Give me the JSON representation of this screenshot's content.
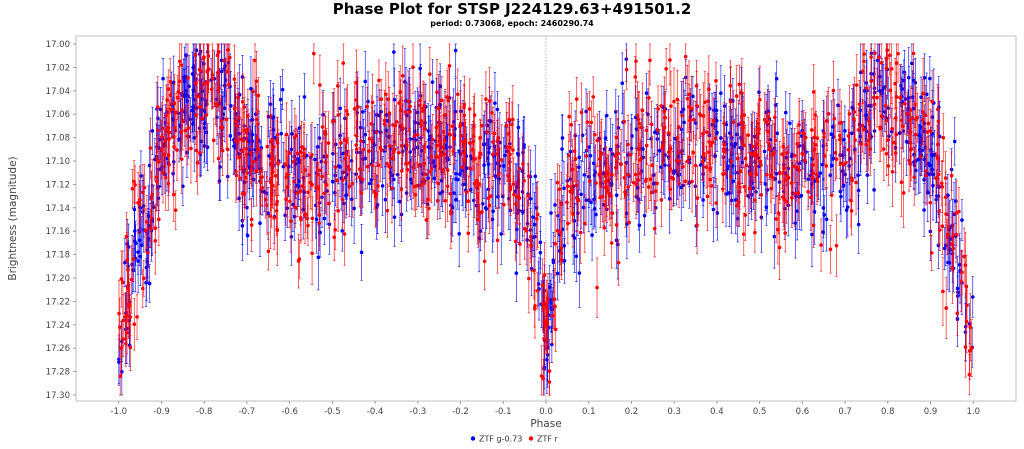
{
  "header": {
    "title": "Phase Plot for STSP J224129.63+491501.2",
    "subtitle": "period: 0.73068, epoch: 2460290.74"
  },
  "chart_data": {
    "type": "scatter",
    "title": "Phase Plot for STSP J224129.63+491501.2",
    "subtitle": "period: 0.73068, epoch: 2460290.74",
    "xlabel": "Phase",
    "ylabel": "Brightness (magnitude)",
    "xlim": [
      -1.1,
      1.1
    ],
    "ylim": [
      17.3,
      17.0
    ],
    "y_inverted": true,
    "grid": false,
    "legend_position": "bottom-center",
    "reference_line_x": 0.0,
    "xticks": [
      "-1.0",
      "-0.9",
      "-0.8",
      "-0.7",
      "-0.6",
      "-0.5",
      "-0.4",
      "-0.3",
      "-0.2",
      "-0.1",
      "0.0",
      "0.1",
      "0.2",
      "0.3",
      "0.4",
      "0.5",
      "0.6",
      "0.7",
      "0.8",
      "0.9",
      "1.0"
    ],
    "xtick_values": [
      -1.0,
      -0.9,
      -0.8,
      -0.7,
      -0.6,
      -0.5,
      -0.4,
      -0.3,
      -0.2,
      -0.1,
      0.0,
      0.1,
      0.2,
      0.3,
      0.4,
      0.5,
      0.6,
      0.7,
      0.8,
      0.9,
      1.0
    ],
    "yticks": [
      "17.00",
      "17.02",
      "17.04",
      "17.06",
      "17.08",
      "17.10",
      "17.12",
      "17.14",
      "17.16",
      "17.18",
      "17.20",
      "17.22",
      "17.24",
      "17.26",
      "17.28",
      "17.30"
    ],
    "ytick_values": [
      17.0,
      17.02,
      17.04,
      17.06,
      17.08,
      17.1,
      17.12,
      17.14,
      17.16,
      17.18,
      17.2,
      17.22,
      17.24,
      17.26,
      17.28,
      17.3
    ],
    "light_curve_model": {
      "description_points_phase": [
        0.0,
        0.03,
        0.06,
        0.1,
        0.15,
        0.25,
        0.35,
        0.42,
        0.5,
        0.58,
        0.7,
        0.75,
        0.8,
        0.85,
        0.9,
        0.95,
        1.0
      ],
      "description_points_mag": [
        17.25,
        17.16,
        17.12,
        17.1,
        17.11,
        17.09,
        17.08,
        17.09,
        17.1,
        17.12,
        17.09,
        17.06,
        17.05,
        17.06,
        17.1,
        17.16,
        17.25
      ],
      "scatter_sigma_mag": 0.03,
      "error_bar_mag": [
        0.015,
        0.03
      ],
      "points_per_series": 1000,
      "phase_range": [
        -1.0,
        1.0
      ]
    },
    "series": [
      {
        "name": "ZTF g-0.73",
        "color": "#0000ff"
      },
      {
        "name": "ZTF r",
        "color": "#ff0000"
      }
    ]
  }
}
